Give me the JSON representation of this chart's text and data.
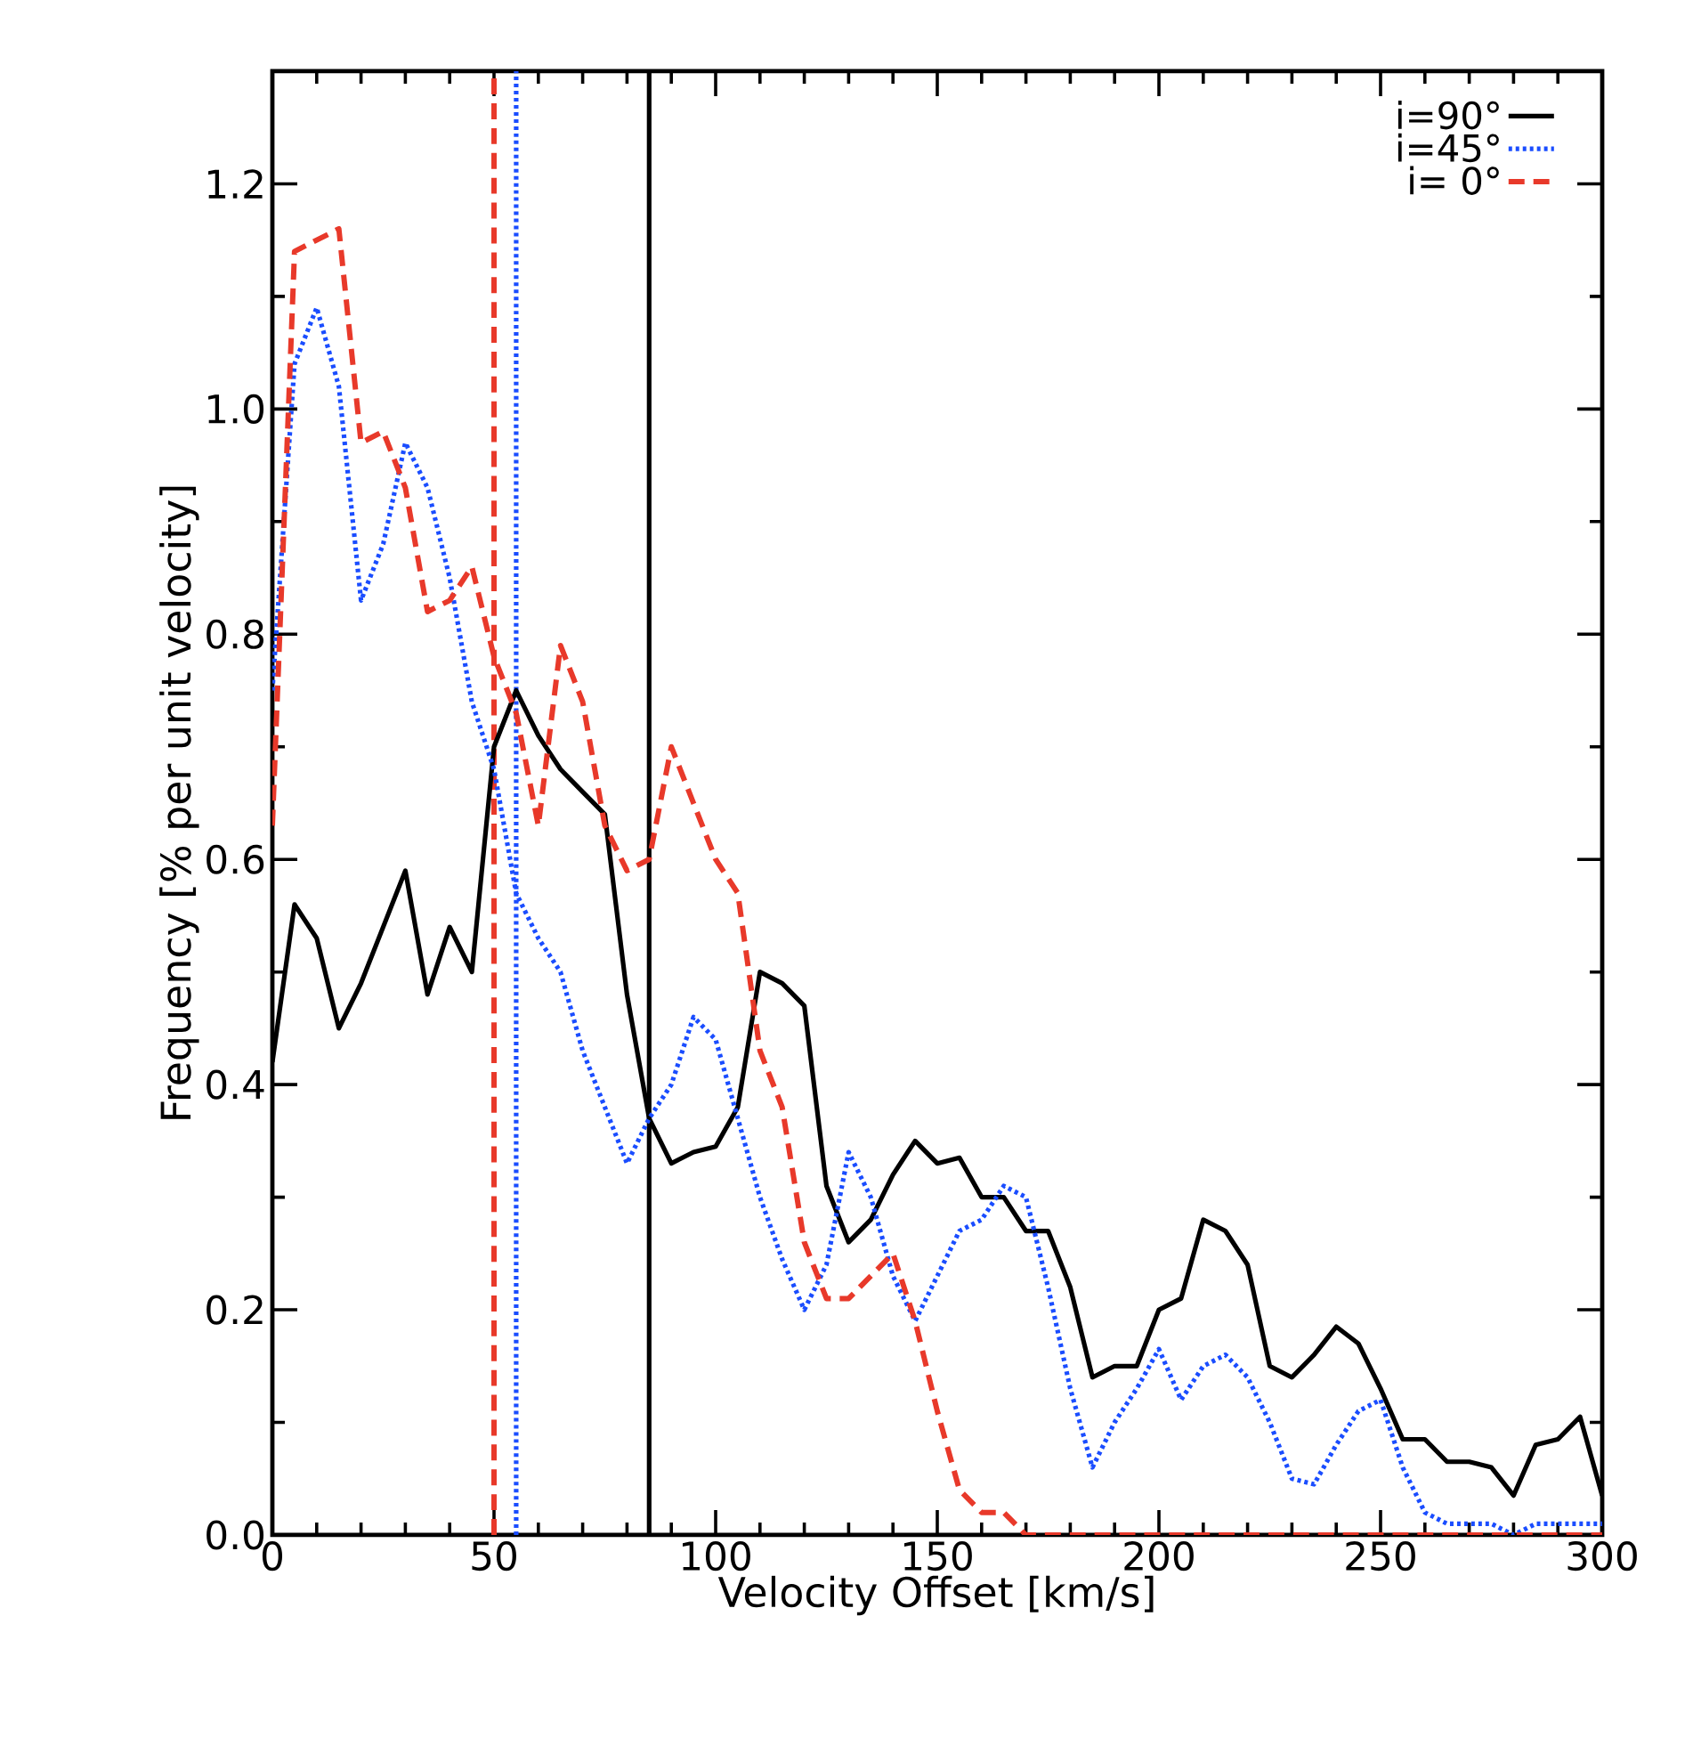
{
  "chart_data": {
    "type": "line",
    "xlabel": "Velocity Offset [km/s]",
    "ylabel": "Frequency [% per unit velocity]",
    "x": [
      0,
      5,
      10,
      15,
      20,
      25,
      30,
      35,
      40,
      45,
      50,
      55,
      60,
      65,
      70,
      75,
      80,
      85,
      90,
      95,
      100,
      105,
      110,
      115,
      120,
      125,
      130,
      135,
      140,
      145,
      150,
      155,
      160,
      165,
      170,
      175,
      180,
      185,
      190,
      195,
      200,
      205,
      210,
      215,
      220,
      225,
      230,
      235,
      240,
      245,
      250,
      255,
      260,
      265,
      270,
      275,
      280,
      285,
      290,
      295,
      300
    ],
    "series": [
      {
        "name": "i=90°",
        "color": "#000000",
        "line_style": "solid",
        "values": [
          0.42,
          0.56,
          0.53,
          0.45,
          0.49,
          0.54,
          0.59,
          0.48,
          0.54,
          0.5,
          0.7,
          0.75,
          0.71,
          0.68,
          0.66,
          0.64,
          0.48,
          0.37,
          0.33,
          0.34,
          0.345,
          0.38,
          0.5,
          0.49,
          0.47,
          0.31,
          0.26,
          0.28,
          0.32,
          0.35,
          0.33,
          0.335,
          0.3,
          0.3,
          0.27,
          0.27,
          0.22,
          0.14,
          0.15,
          0.15,
          0.2,
          0.21,
          0.28,
          0.27,
          0.24,
          0.15,
          0.14,
          0.16,
          0.185,
          0.17,
          0.13,
          0.085,
          0.085,
          0.065,
          0.065,
          0.06,
          0.035,
          0.08,
          0.085,
          0.105,
          0.035
        ]
      },
      {
        "name": "i=45°",
        "color": "#1a4dff",
        "line_style": "dotted",
        "values": [
          0.75,
          1.04,
          1.09,
          1.02,
          0.83,
          0.88,
          0.97,
          0.93,
          0.85,
          0.74,
          0.68,
          0.57,
          0.53,
          0.5,
          0.43,
          0.38,
          0.33,
          0.37,
          0.4,
          0.46,
          0.44,
          0.37,
          0.3,
          0.245,
          0.2,
          0.24,
          0.34,
          0.3,
          0.23,
          0.19,
          0.23,
          0.27,
          0.28,
          0.31,
          0.3,
          0.22,
          0.13,
          0.06,
          0.1,
          0.13,
          0.165,
          0.12,
          0.15,
          0.16,
          0.14,
          0.1,
          0.05,
          0.045,
          0.08,
          0.11,
          0.12,
          0.06,
          0.02,
          0.01,
          0.01,
          0.01,
          0.0,
          0.01,
          0.01,
          0.01,
          0.01
        ]
      },
      {
        "name": "i= 0°",
        "color": "#e8392a",
        "line_style": "dashed",
        "values": [
          0.63,
          1.14,
          1.15,
          1.16,
          0.97,
          0.98,
          0.93,
          0.82,
          0.83,
          0.86,
          0.78,
          0.73,
          0.63,
          0.79,
          0.74,
          0.63,
          0.59,
          0.6,
          0.7,
          0.65,
          0.6,
          0.57,
          0.43,
          0.38,
          0.26,
          0.21,
          0.21,
          0.23,
          0.25,
          0.19,
          0.11,
          0.04,
          0.02,
          0.02,
          0.0,
          0.0,
          0.0,
          0.0,
          0.0,
          0.0,
          0.0,
          0.0,
          0.0,
          0.0,
          0.0,
          0.0,
          0.0,
          0.0,
          0.0,
          0.0,
          0.0,
          0.0,
          0.0,
          0.0,
          0.0,
          0.0,
          0.0,
          0.0,
          0.0,
          0.0,
          0.0
        ]
      }
    ],
    "ref_lines": [
      {
        "axis": "x",
        "value": 50,
        "color": "#e8392a",
        "line_style": "dashed"
      },
      {
        "axis": "x",
        "value": 55,
        "color": "#1a4dff",
        "line_style": "dotted"
      },
      {
        "axis": "x",
        "value": 85,
        "color": "#000000",
        "line_style": "solid"
      }
    ],
    "xlim": [
      0,
      300
    ],
    "xticks": [
      0,
      50,
      100,
      150,
      200,
      250,
      300
    ],
    "ylim": [
      0,
      1.3
    ],
    "yticks": [
      {
        "value": 0,
        "label": "0.0"
      },
      {
        "value": 0.2,
        "label": "0.2"
      },
      {
        "value": 0.4,
        "label": "0.4"
      },
      {
        "value": 0.6,
        "label": "0.6"
      },
      {
        "value": 0.8,
        "label": "0.8"
      },
      {
        "value": 1.0,
        "label": "1.0"
      },
      {
        "value": 1.2,
        "label": "1.2"
      }
    ],
    "legend": "top right",
    "grid": false
  }
}
